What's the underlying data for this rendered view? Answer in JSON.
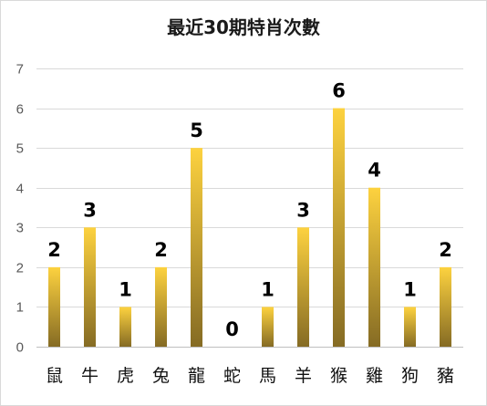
{
  "chart_data": {
    "type": "bar",
    "title": "最近30期特肖次數",
    "categories": [
      "鼠",
      "牛",
      "虎",
      "兔",
      "龍",
      "蛇",
      "馬",
      "羊",
      "猴",
      "雞",
      "狗",
      "豬"
    ],
    "values": [
      2,
      3,
      1,
      2,
      5,
      0,
      1,
      3,
      6,
      4,
      1,
      2
    ],
    "ylim": [
      0,
      7
    ],
    "yticks": [
      0,
      1,
      2,
      3,
      4,
      5,
      6,
      7
    ],
    "grid": true,
    "legend": "none",
    "bar_gradient": {
      "top": "#fdd23f",
      "bottom": "#856b24"
    },
    "gridline_color": "#d9d9d9"
  }
}
